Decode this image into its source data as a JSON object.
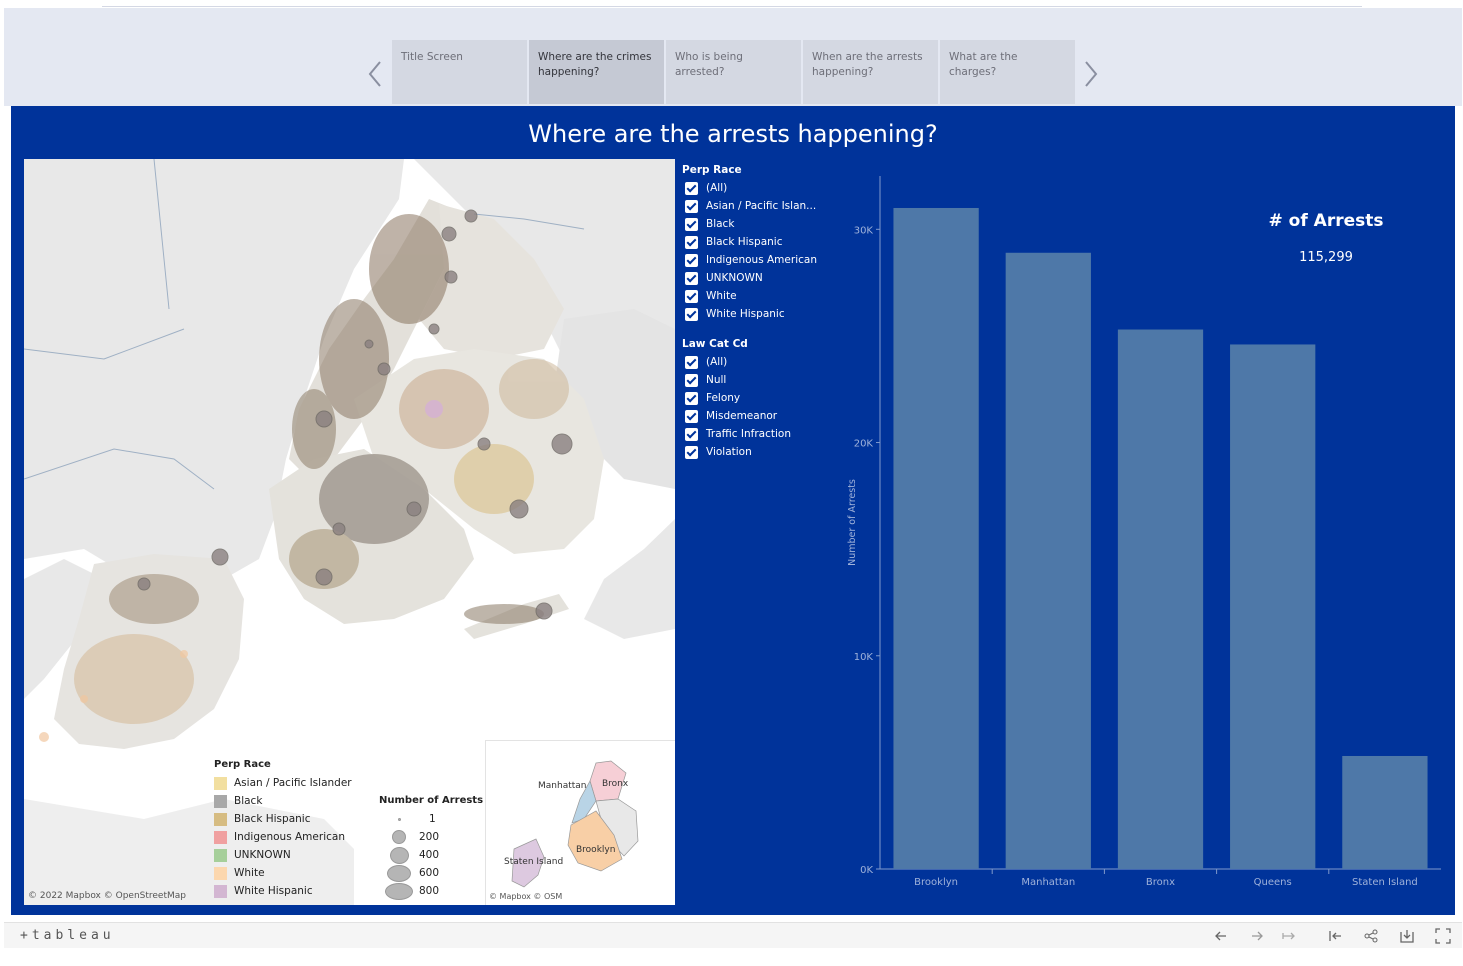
{
  "story": {
    "tabs": [
      {
        "label": "Title Screen",
        "active": false
      },
      {
        "label": "Where are the crimes happening?",
        "active": true
      },
      {
        "label": "Who is being arrested?",
        "active": false
      },
      {
        "label": "When are the arrests happening?",
        "active": false
      },
      {
        "label": "What are the charges?",
        "active": false
      }
    ],
    "prev_icon": "chevron-left-icon",
    "next_icon": "chevron-right-icon"
  },
  "dashboard": {
    "title": "Where are the arrests happening?",
    "background": "#00339a"
  },
  "map": {
    "attribution": "© 2022 Mapbox  © OpenStreetMap",
    "inset_attribution": "© Mapbox  © OSM",
    "legend_race": {
      "title": "Perp Race",
      "items": [
        {
          "label": "Asian / Pacific Islander",
          "color": "#f2dfa0"
        },
        {
          "label": "Black",
          "color": "#a8a8a8"
        },
        {
          "label": "Black Hispanic",
          "color": "#d6bc82"
        },
        {
          "label": "Indigenous American",
          "color": "#f0a0a0"
        },
        {
          "label": "UNKNOWN",
          "color": "#a6cf9a"
        },
        {
          "label": "White",
          "color": "#fcd7ae"
        },
        {
          "label": "White Hispanic",
          "color": "#d3b6d2"
        }
      ]
    },
    "legend_size": {
      "title": "Number of Arrests",
      "items": [
        "1",
        "200",
        "400",
        "600",
        "800"
      ]
    },
    "inset_labels": {
      "manhattan": "Manhattan",
      "bronx": "Bronx",
      "brooklyn": "Brooklyn",
      "staten": "Staten Island"
    }
  },
  "filters": {
    "perp_race": {
      "title": "Perp Race",
      "items": [
        "(All)",
        "Asian / Pacific Islan...",
        "Black",
        "Black Hispanic",
        "Indigenous American",
        "UNKNOWN",
        "White",
        "White Hispanic"
      ]
    },
    "law_cat": {
      "title": "Law Cat Cd",
      "items": [
        "(All)",
        "Null",
        "Felony",
        "Misdemeanor",
        "Traffic Infraction",
        "Violation"
      ]
    }
  },
  "kpi": {
    "label": "# of Arrests",
    "value": "115,299"
  },
  "chart_data": {
    "type": "bar",
    "categories": [
      "Brooklyn",
      "Manhattan",
      "Bronx",
      "Queens",
      "Staten Island"
    ],
    "values": [
      31000,
      28900,
      25300,
      24600,
      5300
    ],
    "ylabel": "Number of Arrests",
    "xlabel": "",
    "ylim": [
      0,
      32500
    ],
    "yticks": [
      "0K",
      "10K",
      "20K",
      "30K"
    ],
    "bar_color": "#4e78a8",
    "grid": false
  },
  "toolbar": {
    "logo": "+tableau",
    "icons": [
      "undo-icon",
      "redo-icon",
      "revert-icon",
      "reset-icon",
      "share-icon",
      "download-icon",
      "fullscreen-icon"
    ]
  }
}
